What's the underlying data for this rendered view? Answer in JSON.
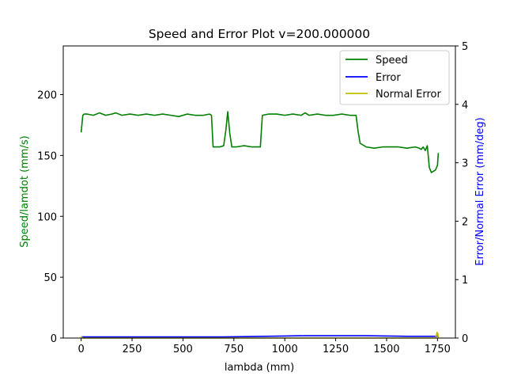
{
  "chart_data": {
    "type": "line",
    "title": "Speed and Error Plot v=200.000000",
    "xlabel": "lambda (mm)",
    "ylabel_left": "Speed/lamdot (mm/s)",
    "ylabel_right": "Error/Normal Error (mm/deg)",
    "xlim": [
      -88,
      1838
    ],
    "ylim_left": [
      0,
      240
    ],
    "ylim_right": [
      0,
      5
    ],
    "xticks": [
      "0",
      "250",
      "500",
      "750",
      "1000",
      "1250",
      "1500",
      "1750"
    ],
    "yticks_left": [
      "0",
      "50",
      "100",
      "150",
      "200"
    ],
    "yticks_right": [
      "0",
      "1",
      "2",
      "3",
      "4",
      "5"
    ],
    "grid": false,
    "legend_position": "top-right",
    "colors": {
      "speed": "#008000",
      "error": "#0000ff",
      "normal_error": "#bfbf00"
    },
    "series": [
      {
        "name": "Speed",
        "axis": "left",
        "x": [
          0,
          8,
          15,
          30,
          60,
          90,
          120,
          150,
          170,
          200,
          240,
          280,
          320,
          360,
          400,
          440,
          480,
          520,
          560,
          600,
          630,
          640,
          648,
          660,
          680,
          700,
          710,
          720,
          730,
          740,
          760,
          800,
          840,
          870,
          880,
          890,
          920,
          960,
          1000,
          1040,
          1080,
          1100,
          1120,
          1160,
          1200,
          1240,
          1280,
          1320,
          1350,
          1360,
          1370,
          1400,
          1440,
          1480,
          1520,
          1560,
          1600,
          1640,
          1660,
          1670,
          1680,
          1690,
          1700,
          1710,
          1720,
          1730,
          1740,
          1750,
          1754
        ],
        "y": [
          169,
          183,
          184,
          184,
          183,
          185,
          183,
          184,
          185,
          183,
          184,
          183,
          184,
          183,
          184,
          183,
          182,
          184,
          183,
          183,
          184,
          183,
          157,
          157,
          157,
          158,
          170,
          186,
          168,
          157,
          157,
          158,
          157,
          157,
          157,
          183,
          184,
          184,
          183,
          184,
          183,
          185,
          183,
          184,
          183,
          183,
          184,
          183,
          183,
          170,
          160,
          157,
          156,
          157,
          157,
          157,
          156,
          157,
          156,
          155,
          157,
          154,
          158,
          140,
          136,
          137,
          138,
          142,
          152
        ]
      },
      {
        "name": "Error",
        "axis": "right",
        "x": [
          0,
          100,
          200,
          300,
          400,
          500,
          600,
          700,
          800,
          900,
          1000,
          1100,
          1200,
          1300,
          1400,
          1500,
          1600,
          1700,
          1750
        ],
        "y": [
          0.02,
          0.02,
          0.02,
          0.02,
          0.02,
          0.02,
          0.02,
          0.02,
          0.025,
          0.03,
          0.035,
          0.04,
          0.04,
          0.04,
          0.04,
          0.035,
          0.03,
          0.03,
          0.03
        ]
      },
      {
        "name": "Normal Error",
        "axis": "right",
        "x": [
          0,
          5,
          10,
          100,
          500,
          1000,
          1500,
          1740,
          1745,
          1748,
          1750,
          1752,
          1754
        ],
        "y": [
          0.03,
          0.01,
          0.0,
          0.0,
          0.0,
          0.0,
          0.0,
          0.0,
          0.05,
          0.1,
          0.05,
          0.08,
          0.0
        ]
      }
    ]
  }
}
